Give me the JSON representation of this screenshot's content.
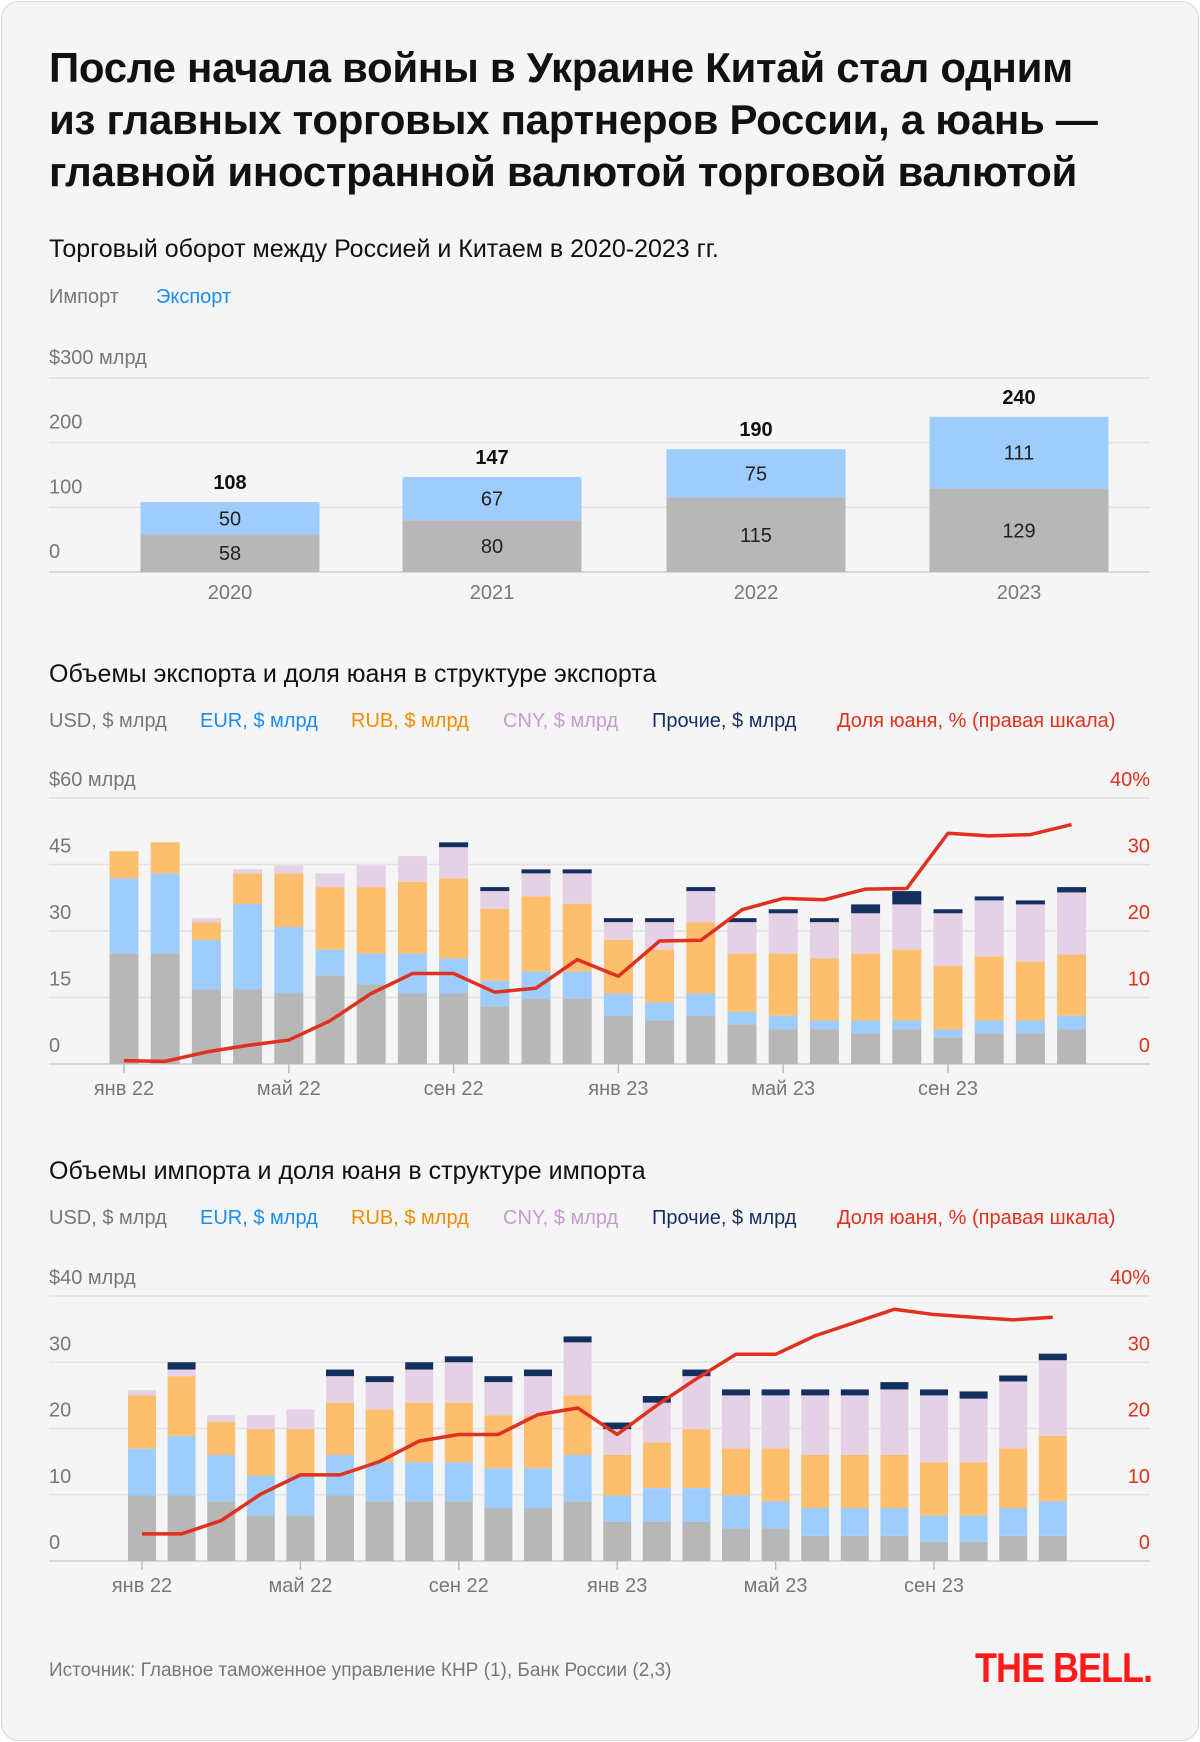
{
  "title_lines": [
    "После начала войны в Украине Китай стал одним",
    "из главных торговых партнеров России, а юань —",
    "главной иностранной валютой торговой валютой"
  ],
  "source": "Источник: Главное таможенное управление КНР (1), Банк России (2,3)",
  "logo": "THE BELL.",
  "colors": {
    "usd": "#b7b7b7",
    "eur": "#9ecdfc",
    "rub": "#fdbe6e",
    "cny": "#e4d1e5",
    "other": "#13305f",
    "share": "#e0301e",
    "axis_text": "#777777",
    "grid": "#e2e2e2"
  },
  "legend_colors": {
    "usd": "#777777",
    "eur": "#1a8cf0",
    "rub": "#ef8c00",
    "cny": "#c59ccb",
    "other": "#13305f",
    "share": "#e0301e",
    "import": "#777777",
    "export": "#1a8cf0"
  },
  "chart_data": [
    {
      "type": "bar",
      "stacked": true,
      "title": "Торговый оборот между Россией и Китаем в 2020-2023 гг.",
      "categories": [
        "2020",
        "2021",
        "2022",
        "2023"
      ],
      "series": [
        {
          "name": "Импорт",
          "key": "usd",
          "values": [
            58,
            80,
            115,
            129
          ]
        },
        {
          "name": "Экспорт",
          "key": "eur",
          "values": [
            50,
            67,
            75,
            111
          ]
        }
      ],
      "totals": [
        108,
        147,
        190,
        240
      ],
      "ylim": [
        0,
        300
      ],
      "yticks": [
        0,
        100,
        200,
        300
      ],
      "ytick_labels": [
        "0",
        "100",
        "200",
        "$300 млрд"
      ],
      "grid": true
    },
    {
      "type": "bar",
      "stacked": true,
      "title": "Объемы экспорта и доля юаня в структуре экспорта",
      "months": 24,
      "xtick_labels": [
        "янв 22",
        "май 22",
        "сен 22",
        "янв 23",
        "май 23",
        "сен 23"
      ],
      "xtick_every": 4,
      "ylim": [
        0,
        60
      ],
      "yticks": [
        0,
        15,
        30,
        45,
        60
      ],
      "ytick_labels": [
        "0",
        "15",
        "30",
        "45",
        "$60 млрд"
      ],
      "y2lim": [
        0,
        40
      ],
      "y2ticks": [
        0,
        10,
        20,
        30,
        40
      ],
      "y2tick_labels": [
        "0",
        "10",
        "20",
        "30",
        "40%"
      ],
      "series": [
        {
          "name": "USD, $ млрд",
          "key": "usd",
          "values": [
            24.9,
            24.9,
            16.8,
            16.8,
            15.9,
            20,
            18,
            15.9,
            15.9,
            13,
            14.8,
            14.8,
            10.9,
            9.8,
            10.9,
            8.9,
            7.8,
            7.8,
            6.9,
            7.8,
            6,
            6.9,
            6.9,
            7.8
          ]
        },
        {
          "name": "EUR, $ млрд",
          "key": "eur",
          "values": [
            17,
            18.1,
            11.2,
            19.3,
            15,
            5.8,
            6.9,
            9,
            7.9,
            5.8,
            6.1,
            6.1,
            5,
            4.1,
            5,
            2.9,
            3.1,
            2,
            2.9,
            2,
            1.8,
            2.9,
            2.9,
            3.1
          ]
        },
        {
          "name": "RUB, $ млрд",
          "key": "rub",
          "values": [
            6.1,
            7,
            4,
            6.9,
            12.1,
            14.1,
            15,
            16.2,
            18.1,
            16.2,
            16.9,
            15.2,
            12.1,
            11.9,
            16.1,
            13.1,
            14,
            14,
            15.1,
            16,
            14.3,
            14.5,
            13.3,
            13.8
          ]
        },
        {
          "name": "CNY, $ млрд",
          "key": "cny",
          "values": [
            0,
            0,
            0.9,
            0.9,
            1.8,
            3.1,
            4.9,
            5.8,
            7,
            4,
            5.2,
            6.9,
            4,
            6.2,
            7,
            7.1,
            9.1,
            8.2,
            9.1,
            10.2,
            11.9,
            12.6,
            12.9,
            14
          ]
        },
        {
          "name": "Прочие, $ млрд",
          "key": "other",
          "values": [
            0,
            0,
            0,
            0,
            0,
            0,
            0,
            0,
            1.1,
            0.9,
            0.9,
            0.9,
            0.9,
            0.9,
            0.9,
            0.9,
            0.9,
            0.9,
            2,
            3,
            0.9,
            0.9,
            0.9,
            1.2
          ]
        }
      ],
      "line": {
        "name": "Доля юаня, % (правая шкала)",
        "key": "share",
        "values": [
          0.5,
          0.4,
          1.8,
          2.8,
          3.6,
          6.5,
          10.6,
          13.6,
          13.6,
          10.8,
          11.4,
          15.7,
          13.2,
          18.5,
          18.6,
          23.2,
          24.9,
          24.7,
          26.3,
          26.4,
          34.7,
          34.3,
          34.5,
          36
        ]
      }
    },
    {
      "type": "bar",
      "stacked": true,
      "title": "Объемы импорта и доля юаня в структуре импорта",
      "months": 24,
      "xtick_labels": [
        "янв 22",
        "май 22",
        "сен 22",
        "янв 23",
        "май 23",
        "сен 23"
      ],
      "xtick_every": 4,
      "ylim": [
        0,
        40
      ],
      "yticks": [
        0,
        10,
        20,
        30,
        40
      ],
      "ytick_labels": [
        "0",
        "10",
        "20",
        "30",
        "$40 млрд"
      ],
      "y2lim": [
        0,
        40
      ],
      "y2ticks": [
        0,
        10,
        20,
        30,
        40
      ],
      "y2tick_labels": [
        "0",
        "10",
        "20",
        "30",
        "40%"
      ],
      "series": [
        {
          "name": "USD, $ млрд",
          "key": "usd",
          "values": [
            9.9,
            9.9,
            9,
            6.9,
            6.9,
            9.9,
            9,
            9,
            9,
            8,
            8,
            9,
            5.9,
            5.9,
            5.9,
            4.9,
            4.9,
            3.8,
            3.8,
            3.8,
            2.9,
            2.9,
            3.8,
            3.8
          ]
        },
        {
          "name": "EUR, $ млрд",
          "key": "eur",
          "values": [
            7.1,
            9,
            7,
            6,
            6,
            6.1,
            5.9,
            5.9,
            5.9,
            6,
            6,
            7,
            4,
            5.1,
            5.1,
            5,
            4.1,
            4.2,
            4.2,
            4.2,
            4,
            4,
            4.2,
            5.2
          ]
        },
        {
          "name": "RUB, $ млрд",
          "key": "rub",
          "values": [
            8,
            9,
            5,
            7,
            7,
            7.9,
            8,
            9,
            9,
            8,
            8,
            9,
            6.1,
            6.9,
            8.9,
            7.1,
            8,
            8,
            8,
            8,
            8,
            8,
            9,
            9.9
          ]
        },
        {
          "name": "CNY, $ млрд",
          "key": "cny",
          "values": [
            0.8,
            1,
            1,
            2.1,
            3,
            4,
            4.1,
            5,
            6.1,
            5,
            5.9,
            8,
            3.9,
            6,
            8,
            8,
            8,
            9,
            9,
            9.9,
            10.1,
            9.6,
            10.1,
            11.4
          ]
        },
        {
          "name": "Прочие, $ млрд",
          "key": "other",
          "values": [
            0,
            1.1,
            0,
            0,
            0,
            1,
            0.9,
            1.1,
            0.9,
            0.9,
            1,
            0.9,
            1,
            1,
            1,
            0.9,
            0.9,
            0.9,
            0.9,
            1.1,
            0.9,
            1.1,
            0.9,
            1
          ]
        }
      ],
      "line": {
        "name": "Доля юаня, % (правая шкала)",
        "key": "share",
        "values": [
          4.1,
          4.1,
          6.1,
          10.1,
          13,
          13,
          15,
          18.1,
          19.1,
          19.1,
          22.1,
          23.1,
          19.1,
          23.5,
          27.5,
          31.2,
          31.2,
          34,
          36,
          38,
          37.2,
          36.8,
          36.4,
          36.8
        ]
      }
    }
  ]
}
